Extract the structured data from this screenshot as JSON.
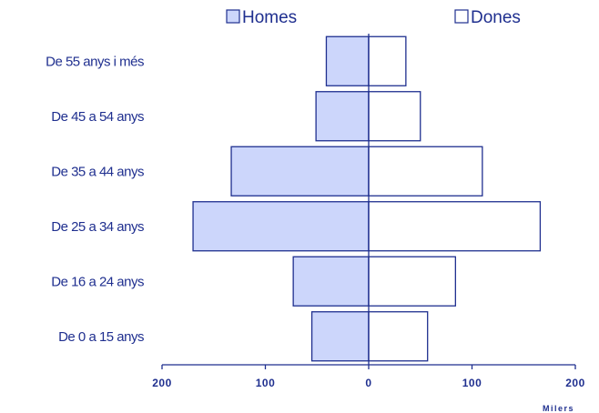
{
  "chart_data": {
    "type": "bar",
    "orientation": "horizontal",
    "layout": "population-pyramid",
    "categories": [
      "De 55 anys i més",
      "De 45 a 54 anys",
      "De 35 a 44 anys",
      "De 25 a 34 anys",
      "De 16 a 24 anys",
      "De 0 a 15 anys"
    ],
    "series": [
      {
        "name": "Homes",
        "side": "left",
        "values": [
          41,
          51,
          133,
          170,
          73,
          55
        ],
        "fill": "#ccd6fb",
        "stroke": "#1f2f8f"
      },
      {
        "name": "Dones",
        "side": "right",
        "values": [
          36,
          50,
          110,
          166,
          84,
          57
        ],
        "fill": "#ffffff",
        "stroke": "#1f2f8f"
      }
    ],
    "xlim": [
      -200,
      200
    ],
    "x_ticks": [
      -200,
      -100,
      0,
      100,
      200
    ],
    "x_tick_labels": [
      "200",
      "100",
      "0",
      "100",
      "200"
    ],
    "xlabel": "Milers",
    "legend_position": "top",
    "grid": false,
    "text_color": "#1f2f8f"
  }
}
